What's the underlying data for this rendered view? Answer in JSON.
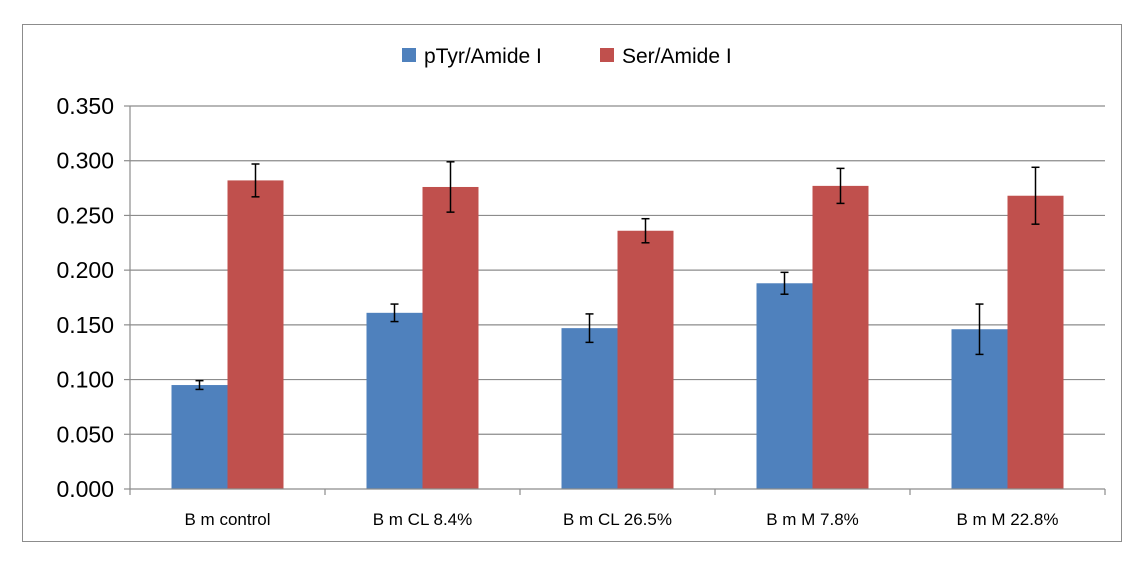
{
  "chart_data": {
    "type": "bar",
    "title": "",
    "xlabel": "",
    "ylabel": "",
    "ylim": [
      0,
      0.35
    ],
    "yticks": [
      "0.000",
      "0.050",
      "0.100",
      "0.150",
      "0.200",
      "0.250",
      "0.300",
      "0.350"
    ],
    "ytick_values": [
      0,
      0.05,
      0.1,
      0.15,
      0.2,
      0.25,
      0.3,
      0.35
    ],
    "grid": true,
    "legend_position": "top",
    "categories": [
      "B m control",
      "B m CL 8.4%",
      "B m CL 26.5%",
      "B m M 7.8%",
      "B m M 22.8%"
    ],
    "series": [
      {
        "name": "pTyr/Amide I",
        "color": "#4f81bd",
        "values": [
          0.095,
          0.161,
          0.147,
          0.188,
          0.146
        ],
        "errors": [
          0.004,
          0.008,
          0.013,
          0.01,
          0.023
        ]
      },
      {
        "name": "Ser/Amide I",
        "color": "#c0504d",
        "values": [
          0.282,
          0.276,
          0.236,
          0.277,
          0.268
        ],
        "errors": [
          0.015,
          0.023,
          0.011,
          0.016,
          0.026
        ]
      }
    ]
  }
}
